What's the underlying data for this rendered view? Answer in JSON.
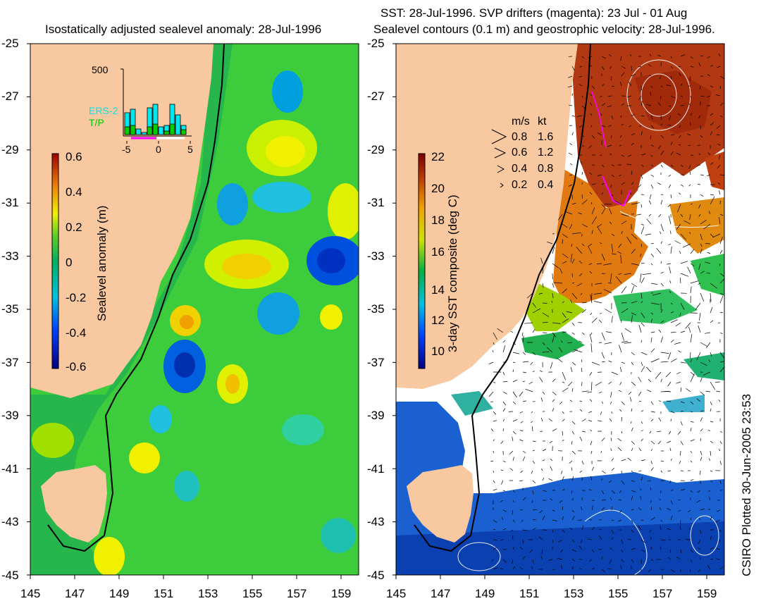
{
  "left_panel": {
    "title": "Isostatically adjusted sealevel anomaly: 28-Jul-1996",
    "colorbar": {
      "label": "Sealevel anomaly (m)",
      "ticks": [
        "0.6",
        "0.4",
        "0.2",
        "0",
        "-0.2",
        "-0.4",
        "-0.6"
      ]
    },
    "inset": {
      "ymax_label": "500",
      "legend": [
        "ERS-2",
        "T/P"
      ],
      "legend_colors": [
        "#00e5ee",
        "#00cc00"
      ],
      "xticks": [
        "-5",
        "0",
        "5"
      ]
    }
  },
  "right_panel": {
    "title_line1": "SST: 28-Jul-1996. SVP drifters (magenta): 23 Jul - 01 Aug",
    "title_line2": "Sealevel contours (0.1 m) and geostrophic velocity: 28-Jul-1996.",
    "colorbar": {
      "label": "3-day SST composite (deg C)",
      "ticks": [
        "22",
        "20",
        "18",
        "16",
        "14",
        "12",
        "10"
      ]
    },
    "velocity_legend": {
      "header_ms": "m/s",
      "header_kt": "kt",
      "rows": [
        {
          "ms": "0.8",
          "kt": "1.6"
        },
        {
          "ms": "0.6",
          "kt": "1.2"
        },
        {
          "ms": "0.4",
          "kt": "0.8"
        },
        {
          "ms": "0.2",
          "kt": "0.4"
        }
      ]
    }
  },
  "axes": {
    "lat_ticks": [
      "-25",
      "-27",
      "-29",
      "-31",
      "-33",
      "-35",
      "-37",
      "-39",
      "-41",
      "-43",
      "-45"
    ],
    "lon_ticks": [
      "145",
      "147",
      "149",
      "151",
      "153",
      "155",
      "157",
      "159"
    ]
  },
  "credit": "CSIRO Plotted 30-Jun-2005 23:53",
  "colors": {
    "land": "#f8c8a0",
    "sla_background": "#33cc33",
    "sst_warm": "#b03010",
    "sst_cold": "#1060d0",
    "cloud": "#ffffff"
  }
}
